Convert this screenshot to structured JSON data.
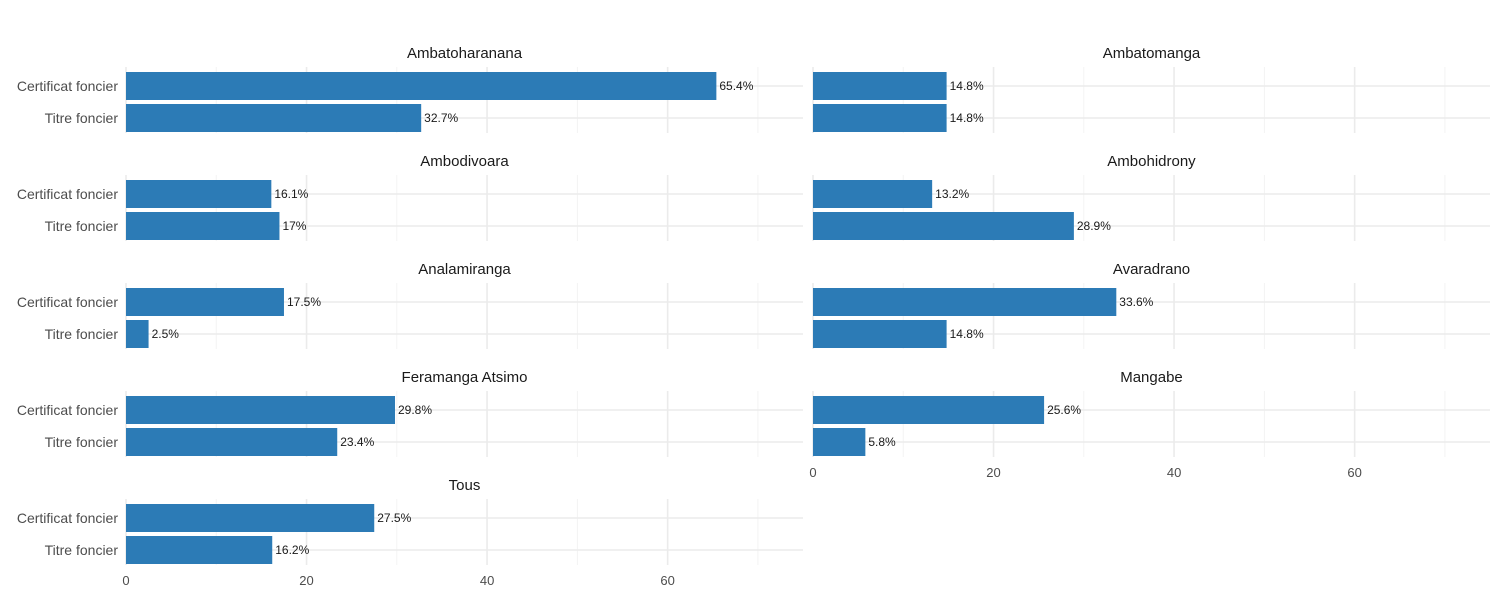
{
  "chart_data": {
    "type": "bar",
    "orientation": "horizontal",
    "facet_layout": "grid, 2 columns",
    "categories": [
      "Certificat foncier",
      "Titre foncier"
    ],
    "xlim": [
      0,
      75
    ],
    "x_ticks": [
      0,
      20,
      40,
      60
    ],
    "x_tick_labels": [
      "0",
      "20",
      "40",
      "60"
    ],
    "grid": true,
    "bar_color": "#2c7bb6",
    "value_suffix": "%",
    "facets": [
      {
        "title": "Ambatoharanana",
        "values": [
          65.4,
          32.7
        ],
        "value_labels": [
          "65.4%",
          "32.7%"
        ]
      },
      {
        "title": "Ambatomanga",
        "values": [
          14.8,
          14.8
        ],
        "value_labels": [
          "14.8%",
          "14.8%"
        ]
      },
      {
        "title": "Ambodivoara",
        "values": [
          16.1,
          17.0
        ],
        "value_labels": [
          "16.1%",
          "17%"
        ]
      },
      {
        "title": "Ambohidrony",
        "values": [
          13.2,
          28.9
        ],
        "value_labels": [
          "13.2%",
          "28.9%"
        ]
      },
      {
        "title": "Analamiranga",
        "values": [
          17.5,
          2.5
        ],
        "value_labels": [
          "17.5%",
          "2.5%"
        ]
      },
      {
        "title": "Avaradrano",
        "values": [
          33.6,
          14.8
        ],
        "value_labels": [
          "33.6%",
          "14.8%"
        ]
      },
      {
        "title": "Feramanga Atsimo",
        "values": [
          29.8,
          23.4
        ],
        "value_labels": [
          "29.8%",
          "23.4%"
        ]
      },
      {
        "title": "Mangabe",
        "values": [
          25.6,
          5.8
        ],
        "value_labels": [
          "25.6%",
          "5.8%"
        ]
      },
      {
        "title": "Tous",
        "values": [
          27.5,
          16.2
        ],
        "value_labels": [
          "27.5%",
          "16.2%"
        ]
      }
    ]
  }
}
